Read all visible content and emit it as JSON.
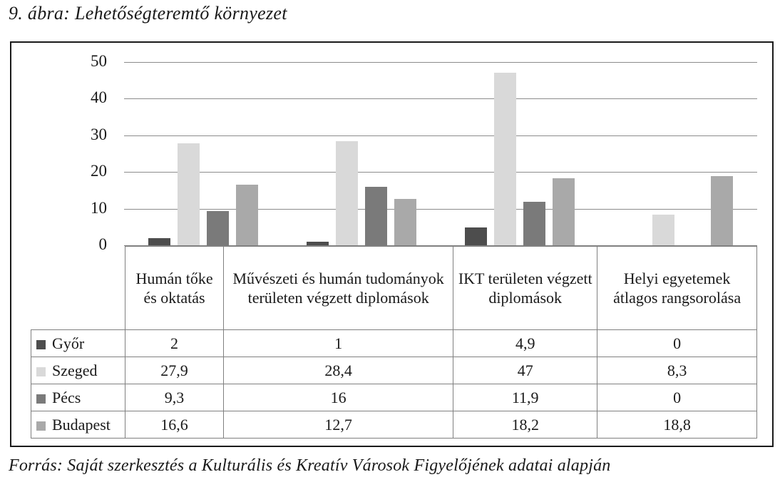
{
  "page": {
    "title": "9. ábra: Lehetőségteremtő környezet",
    "source_note": "Forrás: Saját szerkesztés a Kulturális és Kreatív Városok Figyelőjének adatai alapján"
  },
  "chart_data": {
    "type": "bar",
    "title": "9. ábra: Lehetőségteremtő környezet",
    "categories": [
      "Humán tőke és oktatás",
      "Művészeti és humán tudományok területen végzett diplomások",
      "IKT területen végzett diplomások",
      "Helyi egyetemek átlagos rangsorolása"
    ],
    "series": [
      {
        "name": "Győr",
        "color": "#4d4d4d",
        "values": [
          2,
          1,
          4.9,
          0
        ]
      },
      {
        "name": "Szeged",
        "color": "#d9d9d9",
        "values": [
          27.9,
          28.4,
          47,
          8.3
        ]
      },
      {
        "name": "Pécs",
        "color": "#7a7a7a",
        "values": [
          9.3,
          16,
          11.9,
          0
        ]
      },
      {
        "name": "Budapest",
        "color": "#a9a9a9",
        "values": [
          16.6,
          12.7,
          18.2,
          18.8
        ]
      }
    ],
    "y_axis": {
      "min": 0,
      "max": 50,
      "tick_step": 10,
      "tick_labels": [
        "0",
        "10",
        "20",
        "30",
        "40",
        "50"
      ]
    },
    "decimal_separator": ",",
    "grid": true,
    "legend_position": "data-table-left",
    "data_table_shown": true,
    "xlabel": "",
    "ylabel": ""
  }
}
